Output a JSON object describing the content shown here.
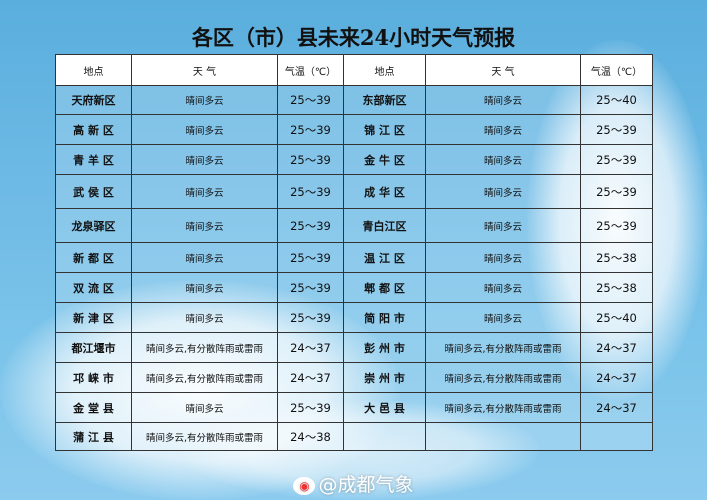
{
  "title": "各区（市）县未来24小时天气预报",
  "headers": [
    "地点",
    "天 气",
    "气温（℃）",
    "地点",
    "天 气",
    "气温（℃）"
  ],
  "rows": [
    [
      "天府新区",
      "晴间多云",
      "25～39",
      "东部新区",
      "晴间多云",
      "25～40"
    ],
    [
      "高 新 区",
      "晴间多云",
      "25～39",
      "锦 江 区",
      "晴间多云",
      "25～39"
    ],
    [
      "青 羊 区",
      "晴间多云",
      "25～39",
      "金 牛 区",
      "晴间多云",
      "25～39"
    ],
    [
      "武 侯 区",
      "晴间多云",
      "25～39",
      "成 华 区",
      "晴间多云",
      "25～39"
    ],
    [
      "龙泉驿区",
      "晴间多云",
      "25～39",
      "青白江区",
      "晴间多云",
      "25～39"
    ],
    [
      "新 都 区",
      "晴间多云",
      "25～39",
      "温 江 区",
      "晴间多云",
      "25～38"
    ],
    [
      "双 流 区",
      "晴间多云",
      "25～39",
      "郫 都 区",
      "晴间多云",
      "25～38"
    ],
    [
      "新 津 区",
      "晴间多云",
      "25～39",
      "简 阳 市",
      "晴间多云",
      "25～40"
    ],
    [
      "都江堰市",
      "晴间多云,有分散阵雨或雷雨",
      "24～37",
      "彭 州 市",
      "晴间多云,有分散阵雨或雷雨",
      "24～37"
    ],
    [
      "邛 崃 市",
      "晴间多云,有分散阵雨或雷雨",
      "24～37",
      "崇 州 市",
      "晴间多云,有分散阵雨或雷雨",
      "24～37"
    ],
    [
      "金 堂 县",
      "晴间多云",
      "25～39",
      "大 邑 县",
      "晴间多云,有分散阵雨或雷雨",
      "24～37"
    ],
    [
      "蒲 江 县",
      "晴间多云,有分散阵雨或雷雨",
      "24～38",
      "",
      "",
      ""
    ]
  ],
  "footer": {
    "icon": "weibo-icon",
    "text": "@成都气象"
  }
}
